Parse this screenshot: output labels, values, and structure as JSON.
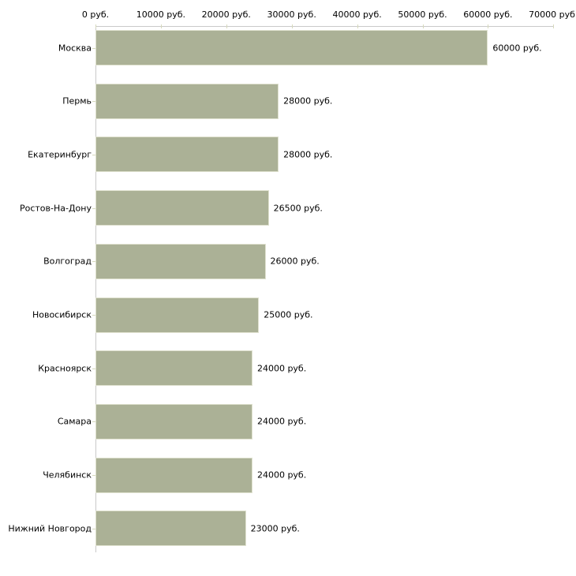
{
  "chart_data": {
    "type": "bar",
    "orientation": "horizontal",
    "title": "",
    "categories": [
      "Москва",
      "Пермь",
      "Екатеринбург",
      "Ростов-На-Дону",
      "Волгоград",
      "Новосибирск",
      "Красноярск",
      "Самара",
      "Челябинск",
      "Нижний Новгород"
    ],
    "values": [
      60000,
      28000,
      28000,
      26500,
      26000,
      25000,
      24000,
      24000,
      24000,
      23000
    ],
    "value_labels": [
      "60000 руб.",
      "28000 руб.",
      "28000 руб.",
      "26500 руб.",
      "26000 руб.",
      "25000 руб.",
      "24000 руб.",
      "24000 руб.",
      "24000 руб.",
      "23000 руб."
    ],
    "x_axis": {
      "position": "top",
      "min": 0,
      "max": 70000,
      "ticks": [
        0,
        10000,
        20000,
        30000,
        40000,
        50000,
        60000,
        70000
      ],
      "tick_labels": [
        "0 руб.",
        "10000 руб.",
        "20000 руб.",
        "30000 руб.",
        "40000 руб.",
        "50000 руб.",
        "60000 руб.",
        "70000 руб."
      ]
    },
    "grid": false,
    "legend": false,
    "colors": {
      "bar_fill": "#abb196",
      "bar_border": "#dfe1cf",
      "axis_line": "#c9c9c9",
      "tick_mark": "#d6d9bd",
      "text": "#000000",
      "background": "#ffffff"
    }
  }
}
